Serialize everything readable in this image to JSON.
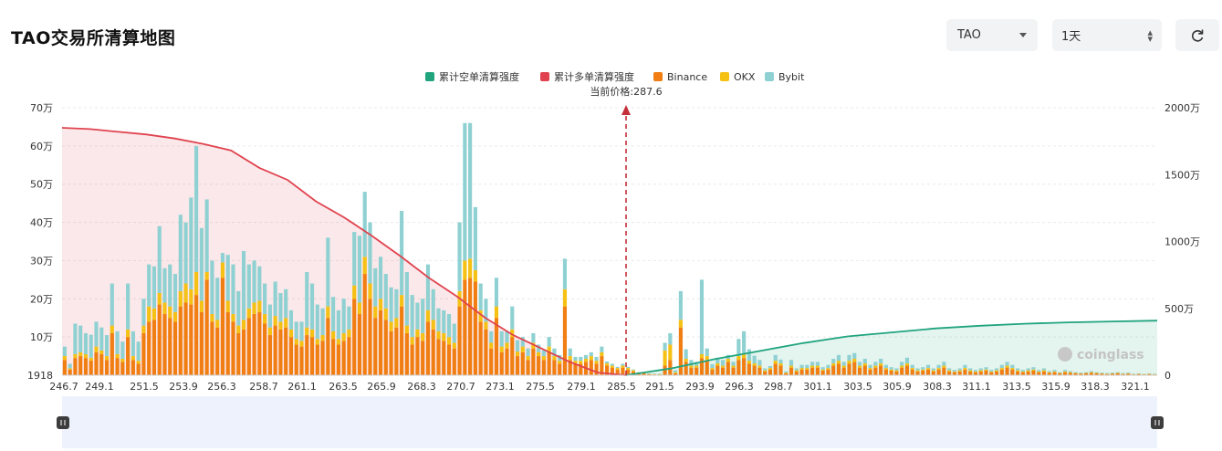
{
  "header": {
    "title": "TAO交易所清算地图"
  },
  "controls": {
    "symbol": "TAO",
    "timeframe": "1天"
  },
  "icons": {
    "refresh": "refresh-icon",
    "dropdown": "chevron-down-icon",
    "stepper": "up-down-icon"
  },
  "watermark": "coinglass",
  "colors": {
    "short_cum": "#20a47e",
    "long_cum": "#e0434f",
    "binance": "#f07e12",
    "okx": "#f5c114",
    "bybit": "#8fd1d2"
  },
  "chart_data": {
    "type": "bar",
    "current_price_label": "当前价格:287.6",
    "current_price": 287.6,
    "legend": [
      "累计空单清算强度",
      "累计多单清算强度",
      "Binance",
      "OKX",
      "Bybit"
    ],
    "x_ticks": [
      "246.7",
      "249.1",
      "251.5",
      "253.9",
      "256.3",
      "258.7",
      "261.1",
      "263.5",
      "265.9",
      "268.3",
      "270.7",
      "273.1",
      "275.5",
      "279.1",
      "285.5",
      "291.5",
      "293.9",
      "296.3",
      "298.7",
      "301.1",
      "303.5",
      "305.9",
      "308.3",
      "311.1",
      "313.5",
      "315.9",
      "318.3",
      "321.1"
    ],
    "y_left_ticks": [
      "1918",
      "10万",
      "20万",
      "30万",
      "40万",
      "50万",
      "60万",
      "70万"
    ],
    "y_left_range": [
      0,
      700000
    ],
    "y_right_ticks": [
      "0",
      "500万",
      "1000万",
      "1500万",
      "2000万"
    ],
    "y_right_range": [
      0,
      20000000
    ],
    "series": [
      {
        "name": "Binance",
        "values": [
          40000,
          15000,
          45000,
          50000,
          45000,
          38000,
          60000,
          55000,
          40000,
          110000,
          45000,
          35000,
          100000,
          40000,
          30000,
          110000,
          140000,
          145000,
          185000,
          160000,
          150000,
          140000,
          180000,
          190000,
          185000,
          210000,
          165000,
          250000,
          140000,
          125000,
          255000,
          165000,
          140000,
          110000,
          120000,
          150000,
          160000,
          165000,
          135000,
          105000,
          130000,
          120000,
          125000,
          100000,
          80000,
          75000,
          105000,
          100000,
          80000,
          90000,
          150000,
          95000,
          80000,
          90000,
          100000,
          200000,
          160000,
          265000,
          200000,
          150000,
          170000,
          145000,
          115000,
          125000,
          180000,
          110000,
          80000,
          100000,
          90000,
          140000,
          120000,
          95000,
          90000,
          80000,
          70000,
          180000,
          250000,
          255000,
          245000,
          140000,
          120000,
          70000,
          150000,
          60000,
          70000,
          100000,
          50000,
          60000,
          40000,
          70000,
          50000,
          40000,
          60000,
          40000,
          30000,
          180000,
          40000,
          30000,
          30000,
          35000,
          40000,
          30000,
          50000,
          25000,
          20000,
          15000,
          20000,
          15000,
          10000,
          5000,
          5000,
          3000,
          2000,
          2000,
          25000,
          40000,
          5000,
          125000,
          35000,
          20000,
          20000,
          45000,
          40000,
          15000,
          25000,
          20000,
          35000,
          20000,
          40000,
          45000,
          30000,
          25000,
          20000,
          10000,
          15000,
          30000,
          25000,
          5000,
          20000,
          10000,
          15000,
          15000,
          20000,
          20000,
          12000,
          15000,
          25000,
          30000,
          20000,
          30000,
          35000,
          20000,
          25000,
          15000,
          20000,
          25000,
          15000,
          12000,
          10000,
          20000,
          25000,
          15000,
          10000,
          12000,
          15000,
          10000,
          15000,
          20000,
          10000,
          8000,
          10000,
          15000,
          10000,
          8000,
          10000,
          12000,
          8000,
          10000,
          15000,
          20000,
          15000,
          10000,
          8000,
          10000,
          12000,
          8000,
          10000,
          6000,
          8000,
          5000,
          8000,
          6000,
          5000,
          4000,
          5000,
          6000,
          5000,
          4000,
          3000,
          4000,
          5000,
          3000,
          4000,
          2000,
          3000,
          2000,
          3000,
          2000
        ]
      },
      {
        "name": "OKX",
        "values": [
          10000,
          3000,
          10000,
          10000,
          10000,
          8000,
          15000,
          10000,
          10000,
          20000,
          10000,
          8000,
          20000,
          10000,
          8000,
          20000,
          40000,
          30000,
          30000,
          30000,
          30000,
          25000,
          40000,
          50000,
          40000,
          60000,
          30000,
          20000,
          20000,
          20000,
          40000,
          30000,
          20000,
          20000,
          25000,
          25000,
          30000,
          30000,
          25000,
          20000,
          25000,
          20000,
          25000,
          20000,
          15000,
          15000,
          20000,
          20000,
          15000,
          15000,
          30000,
          20000,
          15000,
          20000,
          20000,
          35000,
          30000,
          45000,
          40000,
          30000,
          30000,
          30000,
          25000,
          25000,
          30000,
          20000,
          20000,
          20000,
          20000,
          30000,
          25000,
          20000,
          20000,
          20000,
          15000,
          40000,
          50000,
          50000,
          30000,
          30000,
          20000,
          15000,
          30000,
          15000,
          15000,
          20000,
          12000,
          15000,
          10000,
          15000,
          10000,
          10000,
          15000,
          10000,
          8000,
          45000,
          10000,
          8000,
          8000,
          8000,
          10000,
          8000,
          10000,
          6000,
          5000,
          4000,
          5000,
          4000,
          3000,
          2000,
          2000,
          1000,
          1000,
          1000,
          40000,
          40000,
          3000,
          20000,
          8000,
          5000,
          5000,
          10000,
          10000,
          4000,
          6000,
          5000,
          8000,
          5000,
          10000,
          10000,
          8000,
          6000,
          5000,
          3000,
          4000,
          8000,
          6000,
          2000,
          5000,
          3000,
          4000,
          4000,
          5000,
          5000,
          3000,
          4000,
          6000,
          8000,
          5000,
          8000,
          8000,
          5000,
          6000,
          4000,
          5000,
          6000,
          4000,
          3000,
          3000,
          5000,
          6000,
          4000,
          3000,
          3000,
          4000,
          3000,
          4000,
          5000,
          3000,
          2000,
          3000,
          4000,
          3000,
          2000,
          3000,
          3000,
          2000,
          3000,
          4000,
          5000,
          4000,
          3000,
          2000,
          3000,
          3000,
          2000,
          3000,
          2000,
          2000,
          1000,
          2000,
          2000,
          1000,
          1000,
          1000,
          2000,
          1000,
          1000,
          1000,
          1000,
          1000,
          1000,
          1000,
          1000,
          1000,
          1000,
          1000,
          1000
        ]
      },
      {
        "name": "Bybit",
        "values": [
          25000,
          12000,
          80000,
          70000,
          55000,
          60000,
          65000,
          60000,
          55000,
          110000,
          60000,
          45000,
          120000,
          65000,
          50000,
          70000,
          110000,
          110000,
          175000,
          90000,
          110000,
          100000,
          200000,
          160000,
          240000,
          330000,
          190000,
          190000,
          140000,
          110000,
          25000,
          120000,
          130000,
          90000,
          180000,
          115000,
          110000,
          90000,
          80000,
          60000,
          90000,
          75000,
          75000,
          50000,
          45000,
          50000,
          145000,
          120000,
          90000,
          70000,
          180000,
          90000,
          75000,
          90000,
          60000,
          140000,
          175000,
          170000,
          160000,
          100000,
          110000,
          90000,
          90000,
          75000,
          220000,
          140000,
          110000,
          70000,
          90000,
          120000,
          80000,
          60000,
          60000,
          60000,
          50000,
          180000,
          360000,
          355000,
          165000,
          70000,
          60000,
          30000,
          75000,
          40000,
          30000,
          60000,
          30000,
          25000,
          20000,
          25000,
          20000,
          15000,
          25000,
          20000,
          15000,
          80000,
          20000,
          10000,
          10000,
          10000,
          10000,
          10000,
          15000,
          5000,
          5000,
          3000,
          5000,
          3000,
          2000,
          1000,
          1000,
          1000,
          1000,
          1000,
          20000,
          30000,
          5000,
          75000,
          25000,
          15000,
          10000,
          195000,
          20000,
          10000,
          15000,
          15000,
          10000,
          10000,
          45000,
          60000,
          30000,
          20000,
          15000,
          5000,
          5000,
          15000,
          10000,
          3000,
          15000,
          5000,
          8000,
          8000,
          10000,
          10000,
          6000,
          8000,
          12000,
          15000,
          10000,
          15000,
          15000,
          10000,
          12000,
          8000,
          10000,
          12000,
          8000,
          6000,
          5000,
          10000,
          15000,
          8000,
          5000,
          6000,
          8000,
          5000,
          8000,
          10000,
          5000,
          4000,
          5000,
          8000,
          5000,
          4000,
          5000,
          6000,
          4000,
          5000,
          8000,
          10000,
          8000,
          5000,
          4000,
          5000,
          6000,
          4000,
          5000,
          3000,
          4000,
          2000,
          4000,
          3000,
          2000,
          2000,
          2000,
          3000,
          2000,
          2000,
          2000,
          2000,
          2000,
          2000,
          2000,
          1000,
          1000,
          1000,
          1000,
          1000
        ]
      },
      {
        "name": "累计多单清算强度",
        "values": [
          18500000,
          18400000,
          18200000,
          18000000,
          17700000,
          17300000,
          16800000,
          15500000,
          14600000,
          13000000,
          11800000,
          10400000,
          8900000,
          7300000,
          5900000,
          4300000,
          3000000,
          2000000,
          1000000,
          200000,
          0
        ]
      },
      {
        "name": "累计空单清算强度",
        "values": [
          0,
          500000,
          1200000,
          1800000,
          2400000,
          2900000,
          3200000,
          3500000,
          3700000,
          3850000,
          3950000,
          4020000,
          4080000
        ]
      }
    ]
  }
}
